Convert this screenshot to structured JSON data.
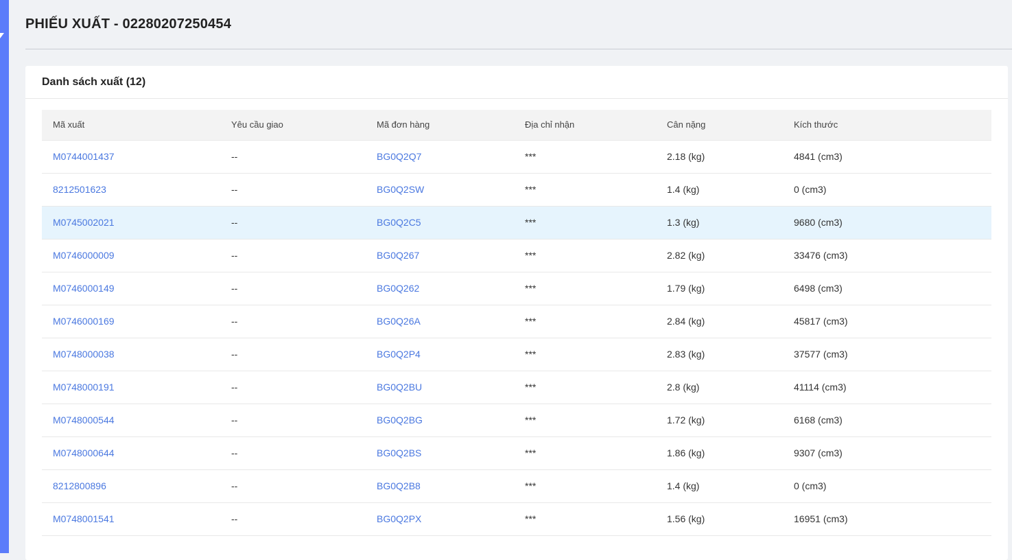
{
  "page": {
    "title": "PHIẾU XUẤT - 02280207250454"
  },
  "card": {
    "title": "Danh sách xuất (12)"
  },
  "table": {
    "headers": [
      "Mã xuất",
      "Yêu cầu giao",
      "Mã đơn hàng",
      "Địa chỉ nhận",
      "Cân nặng",
      "Kích thước"
    ],
    "rows": [
      {
        "ma_xuat": "M0744001437",
        "yeu_cau": "--",
        "ma_don": "BG0Q2Q7",
        "dia_chi": "***",
        "can_nang": "2.18 (kg)",
        "kich_thuoc": "4841 (cm3)"
      },
      {
        "ma_xuat": "8212501623",
        "yeu_cau": "--",
        "ma_don": "BG0Q2SW",
        "dia_chi": "***",
        "can_nang": "1.4 (kg)",
        "kich_thuoc": "0 (cm3)"
      },
      {
        "ma_xuat": "M0745002021",
        "yeu_cau": "--",
        "ma_don": "BG0Q2C5",
        "dia_chi": "***",
        "can_nang": "1.3 (kg)",
        "kich_thuoc": "9680 (cm3)"
      },
      {
        "ma_xuat": "M0746000009",
        "yeu_cau": "--",
        "ma_don": "BG0Q267",
        "dia_chi": "***",
        "can_nang": "2.82 (kg)",
        "kich_thuoc": "33476 (cm3)"
      },
      {
        "ma_xuat": "M0746000149",
        "yeu_cau": "--",
        "ma_don": "BG0Q262",
        "dia_chi": "***",
        "can_nang": "1.79 (kg)",
        "kich_thuoc": "6498 (cm3)"
      },
      {
        "ma_xuat": "M0746000169",
        "yeu_cau": "--",
        "ma_don": "BG0Q26A",
        "dia_chi": "***",
        "can_nang": "2.84 (kg)",
        "kich_thuoc": "45817 (cm3)"
      },
      {
        "ma_xuat": "M0748000038",
        "yeu_cau": "--",
        "ma_don": "BG0Q2P4",
        "dia_chi": "***",
        "can_nang": "2.83 (kg)",
        "kich_thuoc": "37577 (cm3)"
      },
      {
        "ma_xuat": "M0748000191",
        "yeu_cau": "--",
        "ma_don": "BG0Q2BU",
        "dia_chi": "***",
        "can_nang": "2.8 (kg)",
        "kich_thuoc": "41114 (cm3)"
      },
      {
        "ma_xuat": "M0748000544",
        "yeu_cau": "--",
        "ma_don": "BG0Q2BG",
        "dia_chi": "***",
        "can_nang": "1.72 (kg)",
        "kich_thuoc": "6168 (cm3)"
      },
      {
        "ma_xuat": "M0748000644",
        "yeu_cau": "--",
        "ma_don": "BG0Q2BS",
        "dia_chi": "***",
        "can_nang": "1.86 (kg)",
        "kich_thuoc": "9307 (cm3)"
      },
      {
        "ma_xuat": "8212800896",
        "yeu_cau": "--",
        "ma_don": "BG0Q2B8",
        "dia_chi": "***",
        "can_nang": "1.4 (kg)",
        "kich_thuoc": "0 (cm3)"
      },
      {
        "ma_xuat": "M0748001541",
        "yeu_cau": "--",
        "ma_don": "BG0Q2PX",
        "dia_chi": "***",
        "can_nang": "1.56 (kg)",
        "kich_thuoc": "16951 (cm3)"
      }
    ],
    "selected_row_index": 2
  },
  "colors": {
    "accent_sidebar": "#5b7cfa",
    "link": "#4a78e0",
    "selected_row": "#e6f4fd",
    "header_bg": "#f3f3f3"
  }
}
